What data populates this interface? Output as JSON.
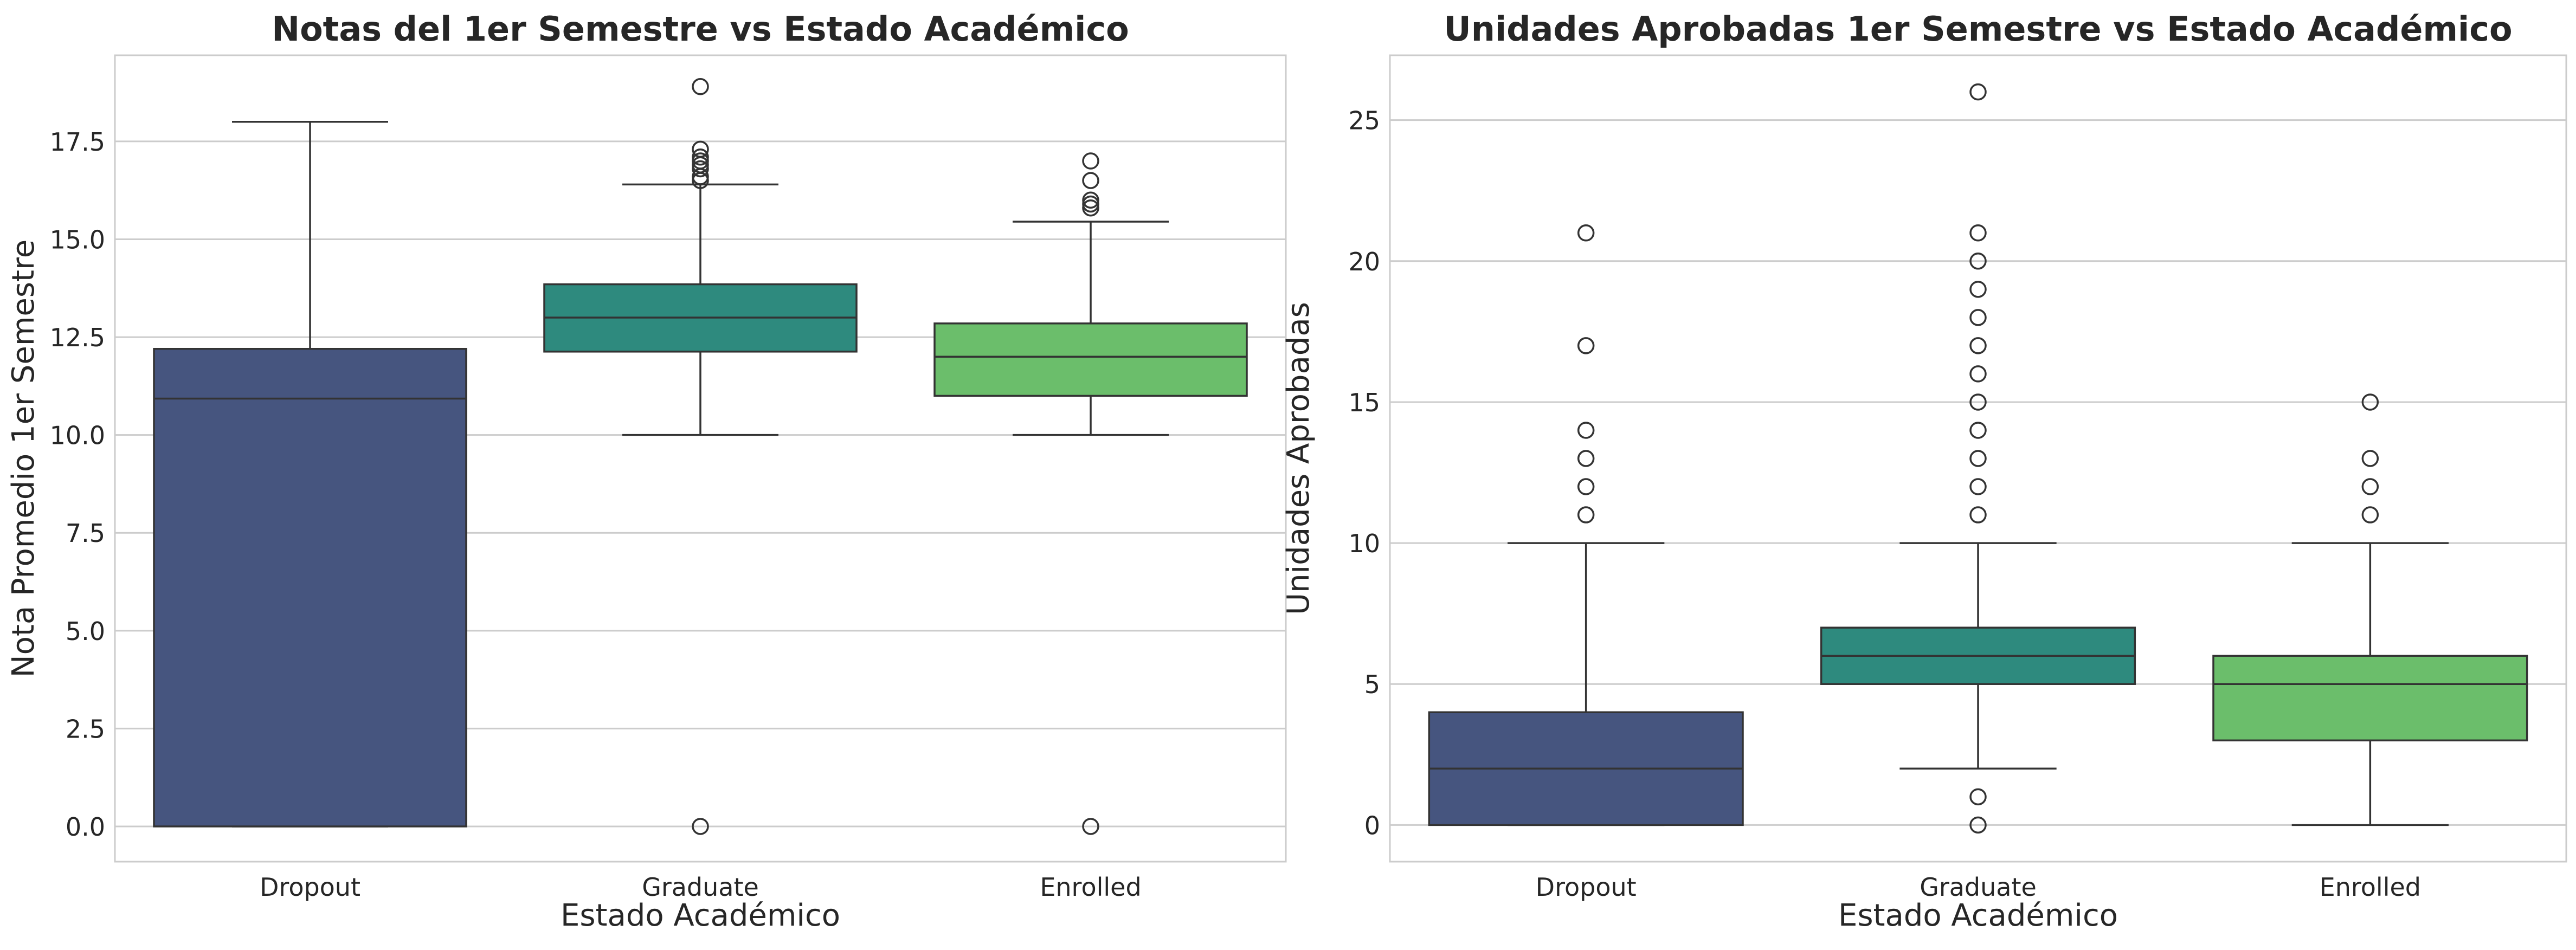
{
  "chart_data": [
    {
      "type": "box",
      "title": "Notas del 1er Semestre vs Estado Académico",
      "xlabel": "Estado Académico",
      "ylabel": "Nota Promedio 1er Semestre",
      "ylim": [
        -0.9,
        19.7
      ],
      "yticks": [
        0.0,
        2.5,
        5.0,
        7.5,
        10.0,
        12.5,
        15.0,
        17.5
      ],
      "ytick_labels": [
        "0.0",
        "2.5",
        "5.0",
        "7.5",
        "10.0",
        "12.5",
        "15.0",
        "17.5"
      ],
      "grid": true,
      "categories": [
        "Dropout",
        "Graduate",
        "Enrolled"
      ],
      "boxes": [
        {
          "category": "Dropout",
          "q1": 0.0,
          "median": 10.93,
          "q3": 12.2,
          "whisker_low": 0.0,
          "whisker_high": 18.0,
          "fliers": [],
          "color": "#46557f"
        },
        {
          "category": "Graduate",
          "q1": 12.13,
          "median": 13.0,
          "q3": 13.85,
          "whisker_low": 10.0,
          "whisker_high": 16.4,
          "fliers": [
            0.0,
            16.5,
            16.6,
            16.8,
            16.9,
            17.0,
            17.1,
            17.3,
            18.9
          ],
          "color": "#2e8a7e"
        },
        {
          "category": "Enrolled",
          "q1": 11.0,
          "median": 12.0,
          "q3": 12.85,
          "whisker_low": 10.0,
          "whisker_high": 15.45,
          "fliers": [
            0.0,
            15.8,
            15.9,
            16.0,
            16.5,
            17.0
          ],
          "color": "#6bbe6b"
        }
      ]
    },
    {
      "type": "box",
      "title": "Unidades Aprobadas 1er Semestre vs Estado Académico",
      "xlabel": "Estado Académico",
      "ylabel": "Unidades Aprobadas",
      "ylim": [
        -1.3,
        27.3
      ],
      "yticks": [
        0,
        5,
        10,
        15,
        20,
        25
      ],
      "ytick_labels": [
        "0",
        "5",
        "10",
        "15",
        "20",
        "25"
      ],
      "grid": true,
      "categories": [
        "Dropout",
        "Graduate",
        "Enrolled"
      ],
      "boxes": [
        {
          "category": "Dropout",
          "q1": 0,
          "median": 2,
          "q3": 4,
          "whisker_low": 0,
          "whisker_high": 10,
          "fliers": [
            11,
            12,
            13,
            14,
            17,
            21
          ],
          "color": "#46557f"
        },
        {
          "category": "Graduate",
          "q1": 5,
          "median": 6,
          "q3": 7,
          "whisker_low": 2,
          "whisker_high": 10,
          "fliers": [
            0,
            1,
            11,
            12,
            13,
            14,
            15,
            16,
            17,
            18,
            19,
            20,
            21,
            26
          ],
          "color": "#2e8a7e"
        },
        {
          "category": "Enrolled",
          "q1": 3,
          "median": 5,
          "q3": 6,
          "whisker_low": 0,
          "whisker_high": 10,
          "fliers": [
            11,
            12,
            13,
            15
          ],
          "color": "#6bbe6b"
        }
      ]
    }
  ]
}
